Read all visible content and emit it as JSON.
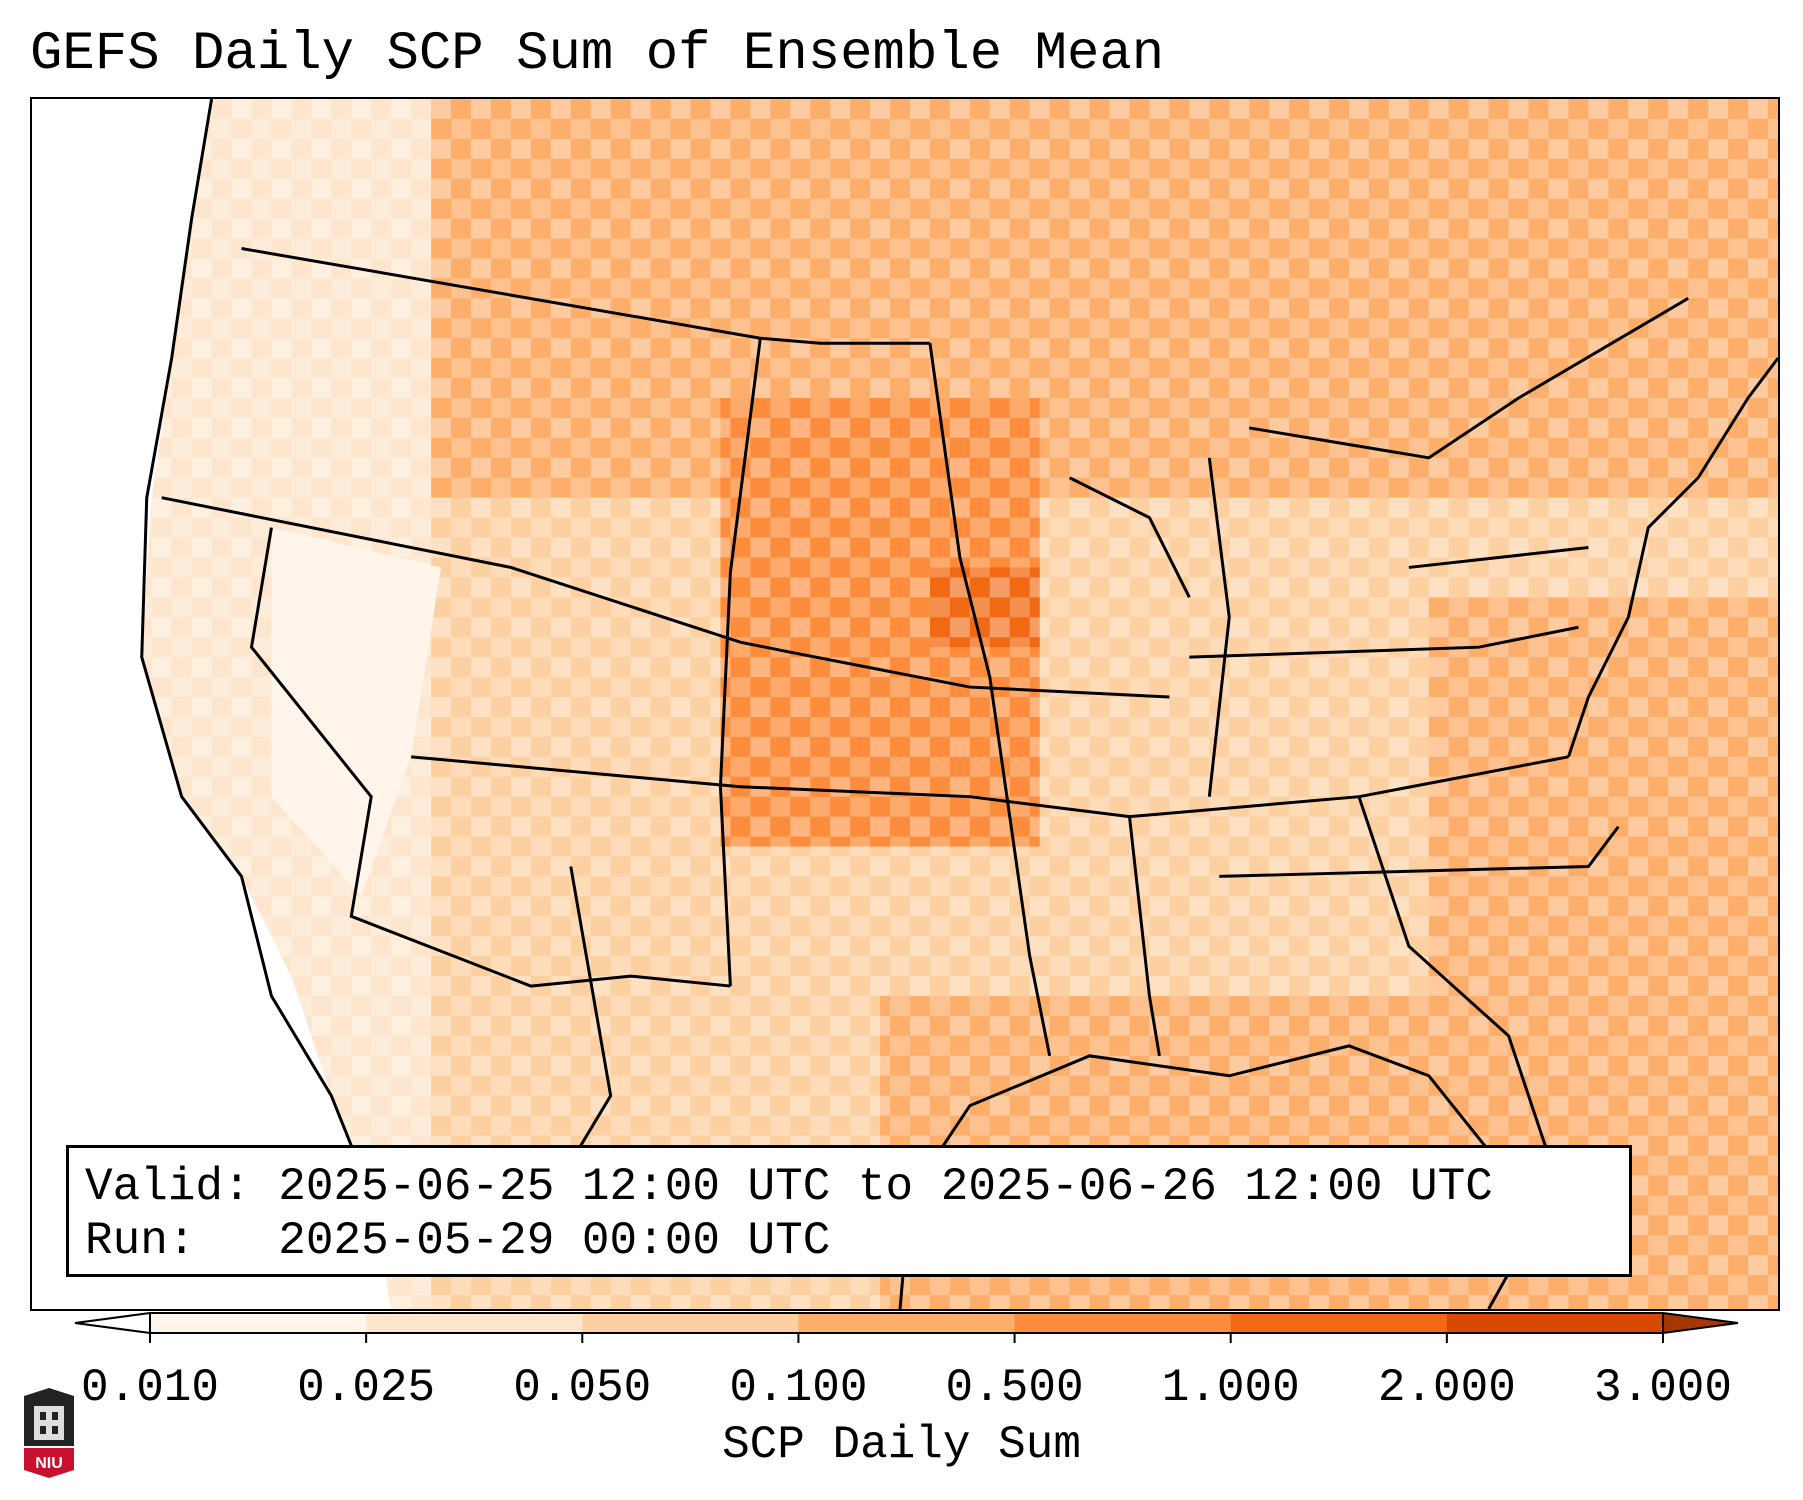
{
  "title": "GEFS Daily SCP Sum of Ensemble Mean",
  "info": {
    "valid_label": "Valid:",
    "valid_value": "2025-06-25 12:00 UTC to 2025-06-26 12:00 UTC",
    "run_label": "Run:",
    "run_value": "2025-05-29 00:00 UTC"
  },
  "colorbar": {
    "label": "SCP Daily Sum",
    "ticks": [
      "0.010",
      "0.025",
      "0.050",
      "0.100",
      "0.500",
      "1.000",
      "2.000",
      "3.000"
    ],
    "colors": [
      "#fff5eb",
      "#fee6ce",
      "#fdd0a2",
      "#fdae6b",
      "#fd8d3c",
      "#f16913",
      "#d94801"
    ],
    "under_color": "#ffffff",
    "over_color": "#a63603",
    "extend": "both"
  },
  "logo_text": "NIU",
  "map": {
    "projection": "Lambert conformal",
    "domain": "Contiguous United States",
    "field": "SCP daily sum",
    "ocean_color": "#fdae6b",
    "boundary_color": "#000000"
  }
}
